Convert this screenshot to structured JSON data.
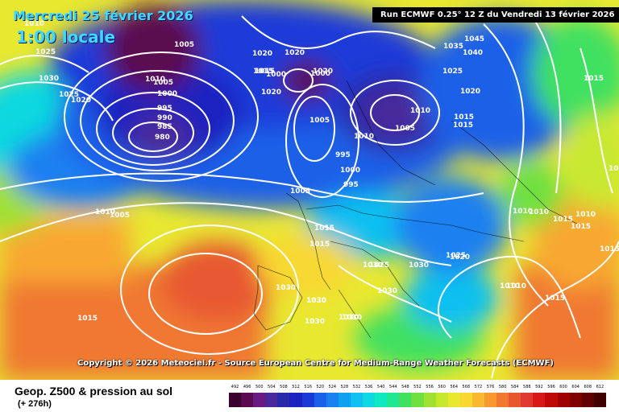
{
  "header": {
    "date": "Mercredi 25 février 2026",
    "local_time": "1:00 locale",
    "run_info": "Run ECMWF 0.25° 12 Z du Vendredi 13 février 2026"
  },
  "copyright": "Copyright © 2026 Meteociel.fr - Source European Centre for Medium-Range Weather Forecasts (ECMWF)",
  "footer": {
    "variable": "Geop. Z500 & pression au sol",
    "lead_time": "(+ 276h)"
  },
  "legend": {
    "values": [
      "492",
      "496",
      "500",
      "504",
      "508",
      "512",
      "516",
      "520",
      "524",
      "528",
      "532",
      "536",
      "540",
      "544",
      "548",
      "552",
      "556",
      "560",
      "564",
      "568",
      "572",
      "576",
      "580",
      "584",
      "588",
      "592",
      "596",
      "600",
      "604",
      "608",
      "612"
    ],
    "colors": [
      "#3a0030",
      "#5a0a50",
      "#6a1a80",
      "#4a2a9a",
      "#2a2aa8",
      "#1a22c0",
      "#1a3ad8",
      "#1a60e8",
      "#1a80f0",
      "#10a0f0",
      "#10c0f0",
      "#10d8e0",
      "#10e8c0",
      "#20e890",
      "#40e060",
      "#70e040",
      "#a0e030",
      "#c8e830",
      "#e8e830",
      "#f8d830",
      "#f8b830",
      "#f89830",
      "#f07830",
      "#e85830",
      "#e03830",
      "#d81818",
      "#c00808",
      "#a00000",
      "#800000",
      "#600000",
      "#400000"
    ]
  },
  "isobars": [
    "1010",
    "1025",
    "1030",
    "1025",
    "1020",
    "1010",
    "1005",
    "1005",
    "1000",
    "995",
    "990",
    "985",
    "980",
    "1010",
    "1005",
    "1020",
    "1000",
    "1020",
    "1015",
    "1020",
    "1000",
    "1005",
    "995",
    "1000",
    "995",
    "1010",
    "1005",
    "1010",
    "1015",
    "1045",
    "1035",
    "1040",
    "1025",
    "1020",
    "1020",
    "1015",
    "1030",
    "1030",
    "1015",
    "1005",
    "1015",
    "1015",
    "1010",
    "1010",
    "1015",
    "1010",
    "1015",
    "1015",
    "1020",
    "1025",
    "1030",
    "1030",
    "1030",
    "1030",
    "1030",
    "1030",
    "1030",
    "1025",
    "1015",
    "1010",
    "1010",
    "1015",
    "1015",
    "1030",
    "1010"
  ]
}
